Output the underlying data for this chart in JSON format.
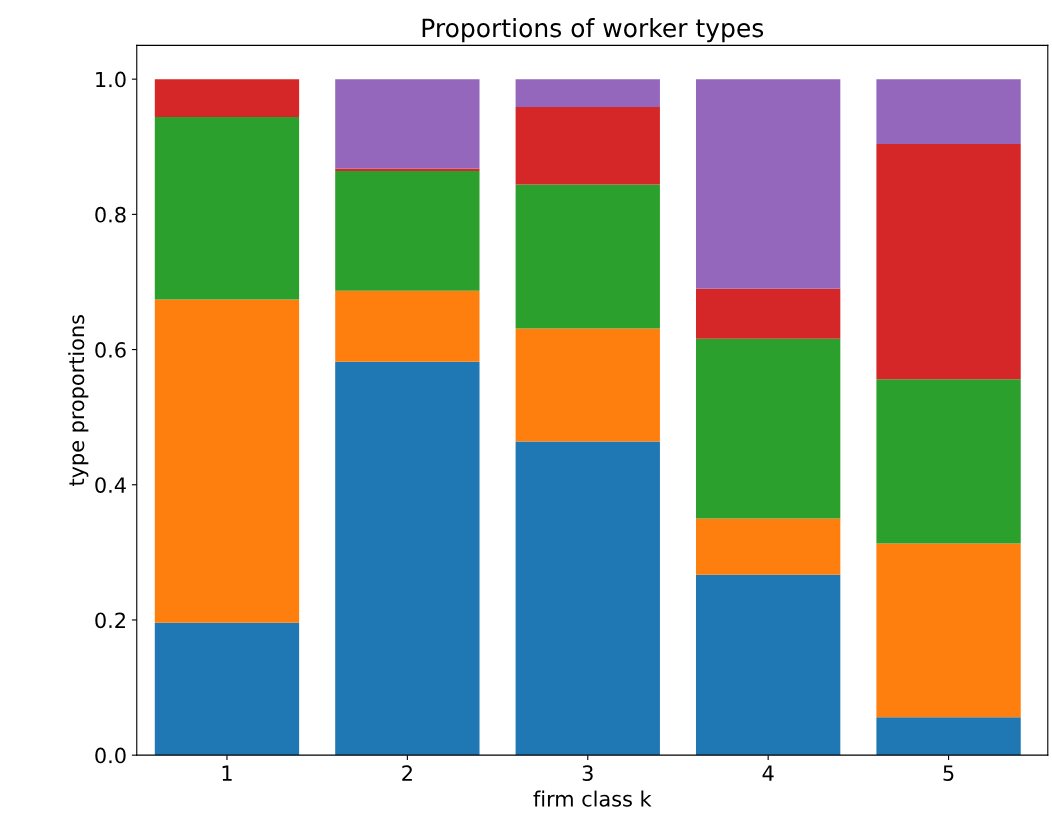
{
  "chart_data": {
    "type": "bar",
    "stacked": true,
    "title": "Proportions of worker types",
    "xlabel": "firm class k",
    "ylabel": "type proportions",
    "categories": [
      "1",
      "2",
      "3",
      "4",
      "5"
    ],
    "series": [
      {
        "color": "#1f77b4",
        "values": [
          0.196,
          0.582,
          0.464,
          0.267,
          0.056
        ]
      },
      {
        "color": "#ff7f0e",
        "values": [
          0.478,
          0.105,
          0.167,
          0.083,
          0.257
        ]
      },
      {
        "color": "#2ca02c",
        "values": [
          0.27,
          0.177,
          0.213,
          0.266,
          0.243
        ]
      },
      {
        "color": "#d62728",
        "values": [
          0.056,
          0.004,
          0.115,
          0.074,
          0.348
        ]
      },
      {
        "color": "#9467bd",
        "values": [
          0.0,
          0.132,
          0.041,
          0.31,
          0.096
        ]
      }
    ],
    "ylim": [
      0,
      1.05
    ],
    "yticks": [
      {
        "value": 0,
        "label": "0.0"
      },
      {
        "value": 0.2,
        "label": "0.2"
      },
      {
        "value": 0.4,
        "label": "0.4"
      },
      {
        "value": 0.6,
        "label": "0.6"
      },
      {
        "value": 0.8,
        "label": "0.8"
      },
      {
        "value": 1.0,
        "label": "1.0"
      }
    ],
    "grid": false,
    "legend": false
  }
}
